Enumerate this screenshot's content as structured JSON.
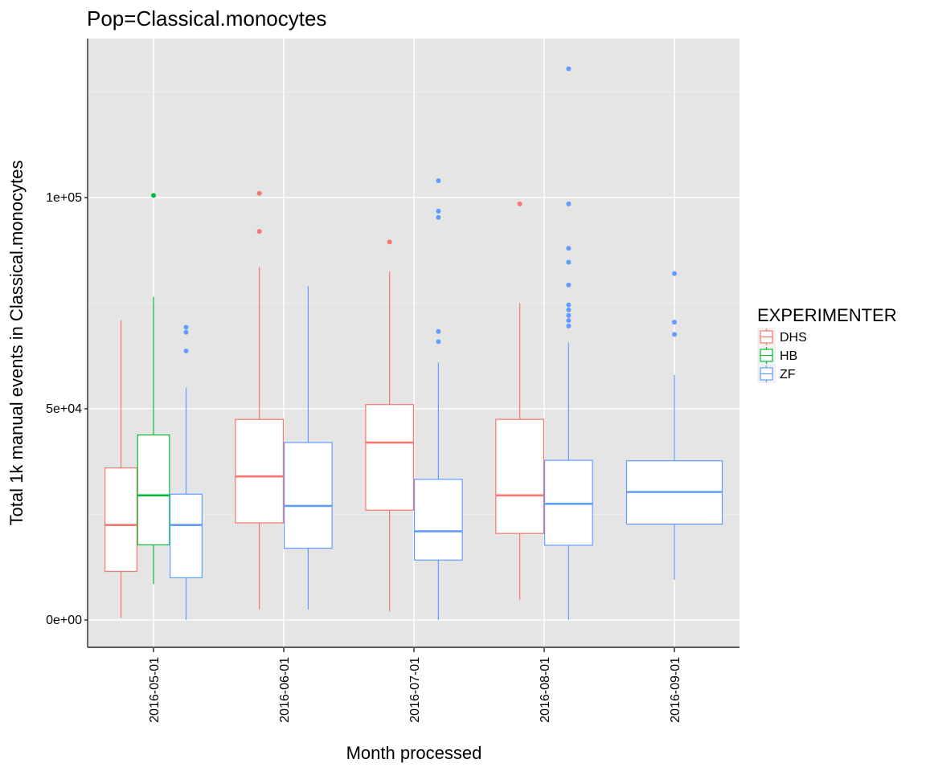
{
  "chart_data": {
    "type": "boxplot",
    "title": "Pop=Classical.monocytes",
    "xlabel": "Month processed",
    "ylabel": "Total 1k manual events in Classical.monocytes",
    "ylim": [
      -6500,
      132000
    ],
    "y_ticks": [
      0,
      50000,
      100000
    ],
    "y_tick_labels": [
      "0e+00",
      "5e+04",
      "1e+05"
    ],
    "grid": true,
    "legend": {
      "title": "EXPERIMENTER",
      "position": "right"
    },
    "categories": [
      "2016-05-01",
      "2016-06-01",
      "2016-07-01",
      "2016-08-01",
      "2016-09-01"
    ],
    "series": [
      {
        "name": "DHS",
        "color": "#F8766D",
        "boxes": [
          {
            "category": "2016-05-01",
            "whisker_low": 500,
            "q1": 11500,
            "median": 22500,
            "q3": 36000,
            "whisker_high": 71000,
            "outliers": []
          },
          {
            "category": "2016-06-01",
            "whisker_low": 2500,
            "q1": 23000,
            "median": 34000,
            "q3": 47500,
            "whisker_high": 83500,
            "outliers": [
              92000,
              101000
            ]
          },
          {
            "category": "2016-07-01",
            "whisker_low": 2000,
            "q1": 26000,
            "median": 42000,
            "q3": 51000,
            "whisker_high": 82500,
            "outliers": [
              89500
            ]
          },
          {
            "category": "2016-08-01",
            "whisker_low": 4800,
            "q1": 20500,
            "median": 29500,
            "q3": 47500,
            "whisker_high": 75000,
            "outliers": [
              98500
            ]
          }
        ]
      },
      {
        "name": "HB",
        "color": "#00BA38",
        "boxes": [
          {
            "category": "2016-05-01",
            "whisker_low": 8500,
            "q1": 17800,
            "median": 29500,
            "q3": 43800,
            "whisker_high": 76500,
            "outliers": [
              100500
            ]
          }
        ]
      },
      {
        "name": "ZF",
        "color": "#619CFF",
        "boxes": [
          {
            "category": "2016-05-01",
            "whisker_low": 0,
            "q1": 10000,
            "median": 22500,
            "q3": 29800,
            "whisker_high": 55000,
            "outliers": [
              63700,
              68100,
              69300
            ]
          },
          {
            "category": "2016-06-01",
            "whisker_low": 2500,
            "q1": 17000,
            "median": 27000,
            "q3": 42000,
            "whisker_high": 79000,
            "outliers": []
          },
          {
            "category": "2016-07-01",
            "whisker_low": 0,
            "q1": 14200,
            "median": 21000,
            "q3": 33300,
            "whisker_high": 61000,
            "outliers": [
              65900,
              68300,
              95300,
              96800,
              104000
            ]
          },
          {
            "category": "2016-08-01",
            "whisker_low": 0,
            "q1": 17700,
            "median": 27500,
            "q3": 37800,
            "whisker_high": 65700,
            "outliers": [
              69600,
              70900,
              72100,
              73400,
              74600,
              79300,
              84700,
              88000,
              98500,
              130500
            ]
          },
          {
            "category": "2016-09-01",
            "whisker_low": 9500,
            "q1": 22700,
            "median": 30300,
            "q3": 37700,
            "whisker_high": 58000,
            "outliers": [
              67600,
              70500,
              82000
            ]
          }
        ]
      }
    ]
  }
}
